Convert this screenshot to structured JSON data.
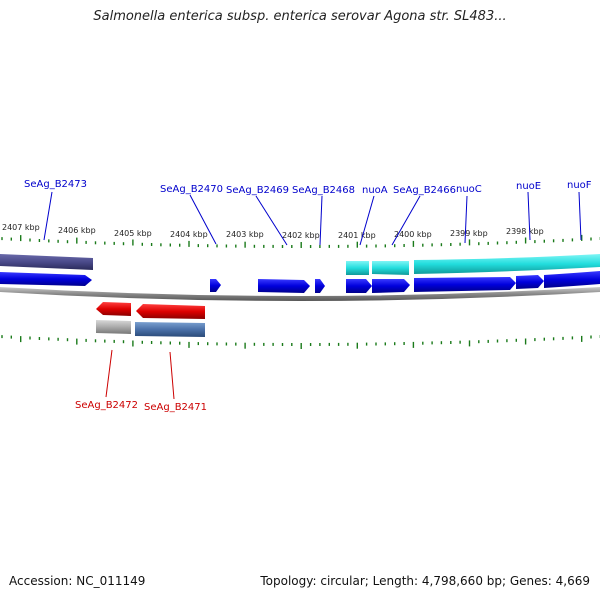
{
  "title": "Salmonella enterica subsp. enterica serovar Agona str. SL483...",
  "footer": {
    "accession": "Accession: NC_011149",
    "summary": "Topology: circular; Length: 4,798,660 bp; Genes: 4,669"
  },
  "colors": {
    "forward_gene": "#0000dd",
    "reverse_gene": "#dd0000",
    "nuo_operon": "#22dddd",
    "reverse_operon": "#4a70a8",
    "dark_operon": "#4a4a8a",
    "grey_feature": "#aaaaaa",
    "tick": "#1a7a1a",
    "backbone": "#888888"
  },
  "kbp_labels": [
    "2407 kbp",
    "2406 kbp",
    "2405 kbp",
    "2404 kbp",
    "2403 kbp",
    "2402 kbp",
    "2401 kbp",
    "2400 kbp",
    "2399 kbp",
    "2398 kbp"
  ],
  "forward_labels": [
    "SeAg_B2473",
    "SeAg_B2470",
    "SeAg_B2469",
    "SeAg_B2468",
    "nuoA",
    "SeAg_B2466",
    "nuoC",
    "nuoE",
    "nuoF"
  ],
  "reverse_labels": [
    "SeAg_B2472",
    "SeAg_B2471"
  ]
}
